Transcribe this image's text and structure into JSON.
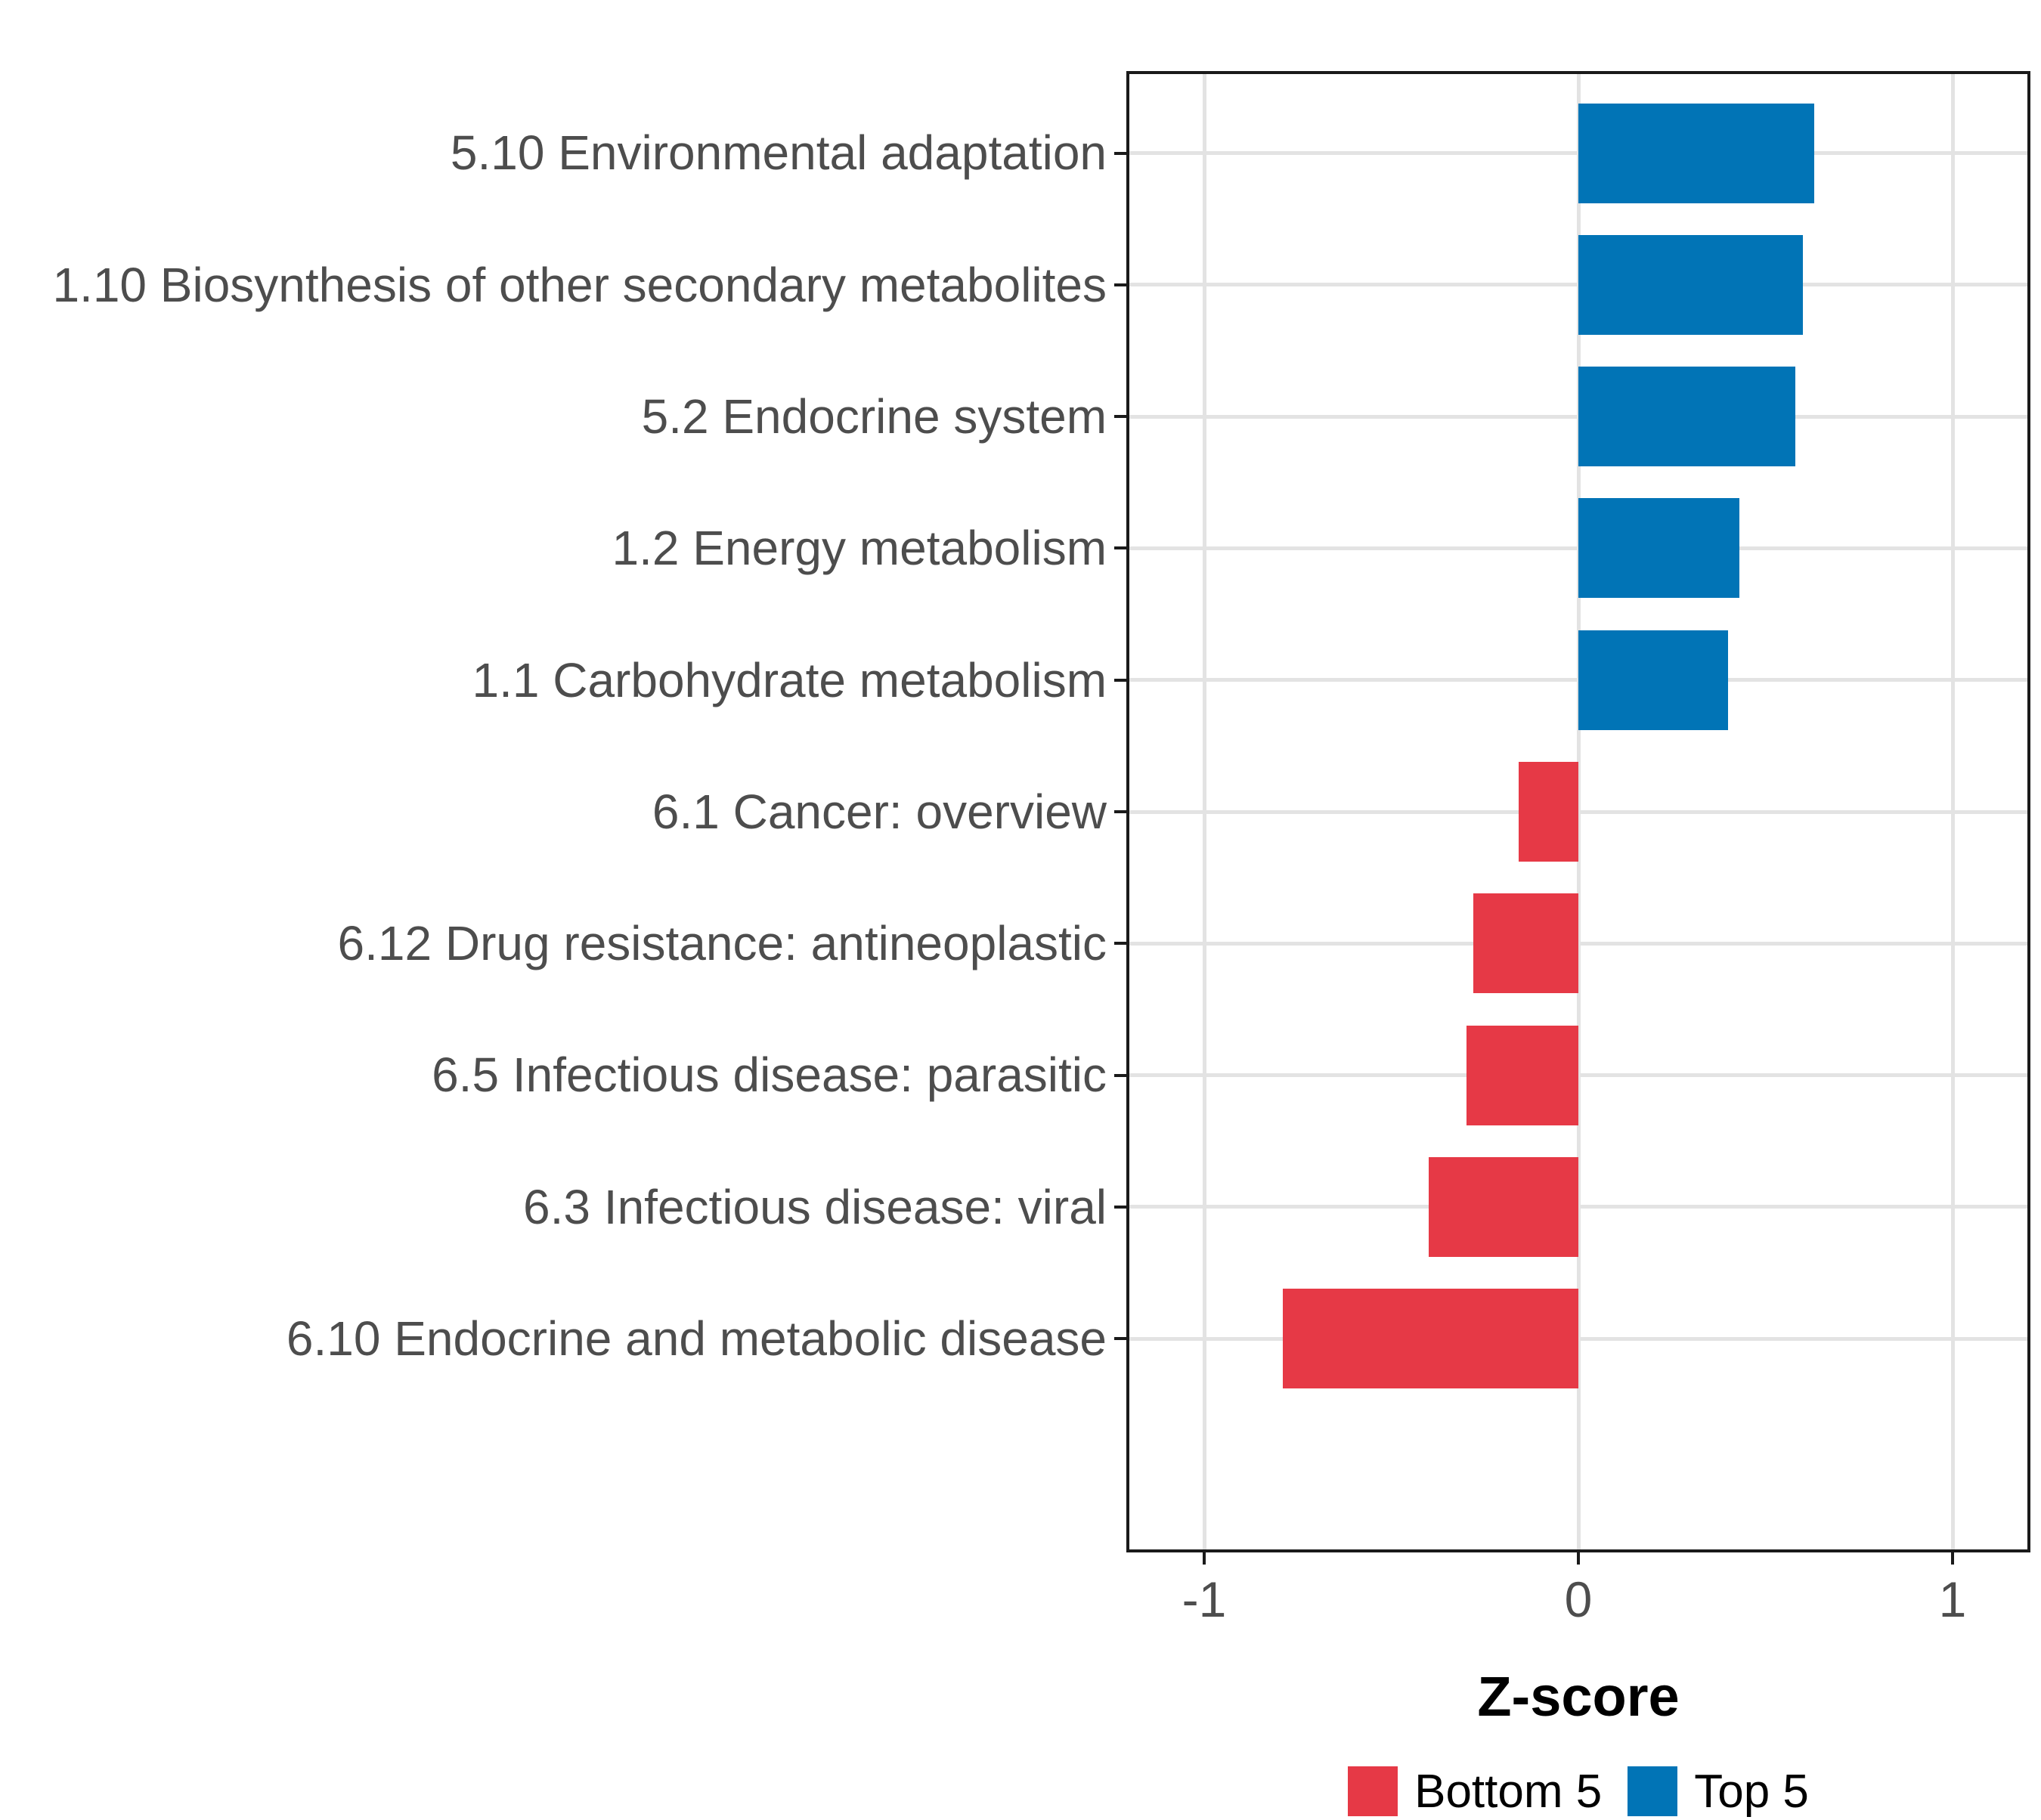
{
  "chart_data": {
    "type": "bar",
    "orientation": "horizontal",
    "title": "",
    "xlabel": "Z-score",
    "categories": [
      "5.10 Environmental adaptation",
      "1.10 Biosynthesis of other secondary metabolites",
      "5.2 Endocrine system",
      "1.2 Energy metabolism",
      "1.1 Carbohydrate metabolism",
      "6.1 Cancer: overview",
      "6.12 Drug resistance: antineoplastic",
      "6.5 Infectious disease: parasitic",
      "6.3 Infectious disease: viral",
      "6.10 Endocrine and metabolic disease"
    ],
    "values": [
      0.63,
      0.6,
      0.58,
      0.43,
      0.4,
      -0.16,
      -0.28,
      -0.3,
      -0.4,
      -0.79
    ],
    "groups": [
      "Top 5",
      "Top 5",
      "Top 5",
      "Top 5",
      "Top 5",
      "Bottom 5",
      "Bottom 5",
      "Bottom 5",
      "Bottom 5",
      "Bottom 5"
    ],
    "series": [
      {
        "name": "Bottom 5",
        "color": "#E63946"
      },
      {
        "name": "Top 5",
        "color": "#0174B6"
      }
    ],
    "x_ticks": [
      -1,
      0,
      1
    ],
    "x_tick_labels": [
      "-1",
      "0",
      "1"
    ],
    "xlim": [
      -1.2,
      1.2
    ],
    "grid": "major",
    "legend_position": "bottom",
    "legend_order": [
      "Bottom 5",
      "Top 5"
    ]
  },
  "style": {
    "bar_color_positive": "#0174B6",
    "bar_color_negative": "#E63946",
    "gridline_color": "#E3E3E3",
    "panel_border_color": "#1A1A1A",
    "axis_text_color": "#4D4D4D",
    "axis_title_color": "#000000",
    "legend_text_color": "#000000",
    "background_color": "#FFFFFF"
  }
}
